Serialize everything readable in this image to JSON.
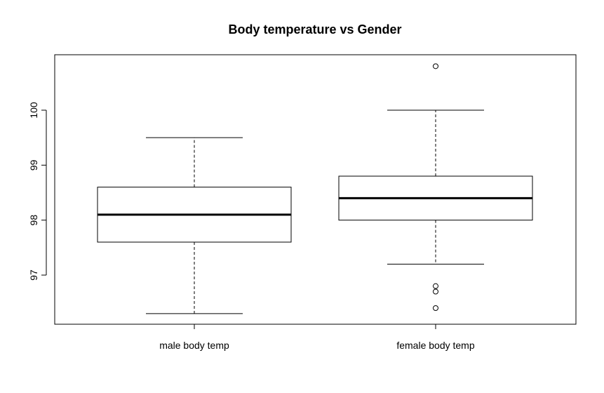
{
  "chart_data": {
    "type": "boxplot",
    "title": "Body temperature vs Gender",
    "xlabel": "",
    "ylabel": "",
    "categories": [
      "male body temp",
      "female body temp"
    ],
    "ylim": [
      96.1,
      101.0
    ],
    "yticks": [
      97,
      98,
      99,
      100
    ],
    "grid": false,
    "series": [
      {
        "category": "male body temp",
        "min": 96.3,
        "q1": 97.6,
        "median": 98.1,
        "q3": 98.6,
        "max": 99.5,
        "outliers": []
      },
      {
        "category": "female body temp",
        "min": 97.2,
        "q1": 98.0,
        "median": 98.4,
        "q3": 98.8,
        "max": 100.0,
        "outliers": [
          100.8,
          96.8,
          96.7,
          96.4
        ]
      }
    ]
  }
}
